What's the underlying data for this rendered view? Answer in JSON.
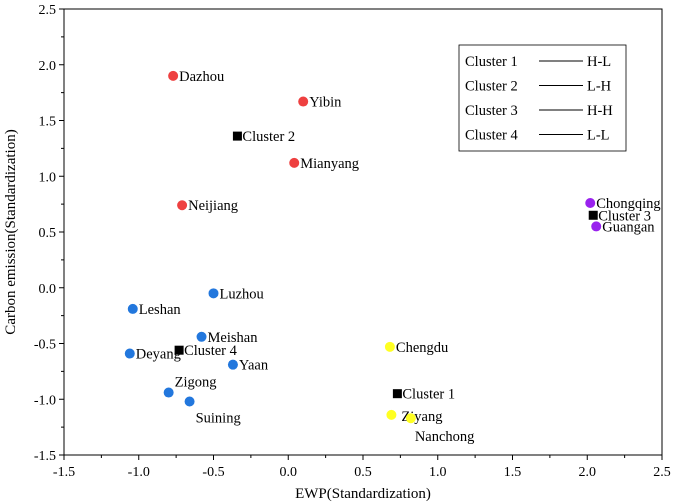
{
  "chart_data": {
    "type": "scatter",
    "title": "",
    "xlabel": "EWP(Standardization)",
    "ylabel": "Carbon emission(Standardization)",
    "xlim": [
      -1.5,
      2.5
    ],
    "ylim": [
      -1.5,
      2.5
    ],
    "xticks": [
      "-1.5",
      "-1.0",
      "-0.5",
      "0.0",
      "0.5",
      "1.0",
      "1.5",
      "2.0",
      "2.5"
    ],
    "yticks": [
      "-1.5",
      "-1.0",
      "-0.5",
      "0.0",
      "0.5",
      "1.0",
      "1.5",
      "2.0",
      "2.5"
    ],
    "grid": false,
    "colors": {
      "cluster1": "#ffff22",
      "cluster2": "#ee4040",
      "cluster3": "#9922ee",
      "cluster4": "#2277dd",
      "center": "#000000"
    },
    "series": [
      {
        "name": "Cluster 2",
        "group": "cluster2",
        "points": [
          {
            "label": "Dazhou",
            "x": -0.77,
            "y": 1.9
          },
          {
            "label": "Yibin",
            "x": 0.1,
            "y": 1.67
          },
          {
            "label": "Mianyang",
            "x": 0.04,
            "y": 1.12
          },
          {
            "label": "Neijiang",
            "x": -0.71,
            "y": 0.74
          }
        ]
      },
      {
        "name": "Cluster 3",
        "group": "cluster3",
        "points": [
          {
            "label": "Chongqing",
            "x": 2.02,
            "y": 0.76
          },
          {
            "label": "Guangan",
            "x": 2.06,
            "y": 0.55
          }
        ]
      },
      {
        "name": "Cluster 4",
        "group": "cluster4",
        "points": [
          {
            "label": "Luzhou",
            "x": -0.5,
            "y": -0.05
          },
          {
            "label": "Leshan",
            "x": -1.04,
            "y": -0.19
          },
          {
            "label": "Meishan",
            "x": -0.58,
            "y": -0.44
          },
          {
            "label": "Deyang",
            "x": -1.06,
            "y": -0.59
          },
          {
            "label": "Yaan",
            "x": -0.37,
            "y": -0.69
          },
          {
            "label": "Zigong",
            "x": -0.8,
            "y": -0.94
          },
          {
            "label": "Suining",
            "x": -0.66,
            "y": -1.02
          }
        ]
      },
      {
        "name": "Cluster 1",
        "group": "cluster1",
        "points": [
          {
            "label": "Chengdu",
            "x": 0.68,
            "y": -0.53
          },
          {
            "label": "Ziyang",
            "x": 0.69,
            "y": -1.14
          },
          {
            "label": "Nanchong",
            "x": 0.82,
            "y": -1.17
          }
        ]
      }
    ],
    "centers": [
      {
        "label": "Cluster 2",
        "x": -0.34,
        "y": 1.36
      },
      {
        "label": "Cluster 3",
        "x": 2.04,
        "y": 0.65
      },
      {
        "label": "Cluster 4",
        "x": -0.73,
        "y": -0.56
      },
      {
        "label": "Cluster 1",
        "x": 0.73,
        "y": -0.95
      }
    ],
    "legend": {
      "position": "top-right",
      "entries": [
        {
          "name": "Cluster 1",
          "code": "H-L"
        },
        {
          "name": "Cluster 2",
          "code": "L-H"
        },
        {
          "name": "Cluster 3",
          "code": "H-H"
        },
        {
          "name": "Cluster 4",
          "code": "L-L"
        }
      ]
    }
  }
}
